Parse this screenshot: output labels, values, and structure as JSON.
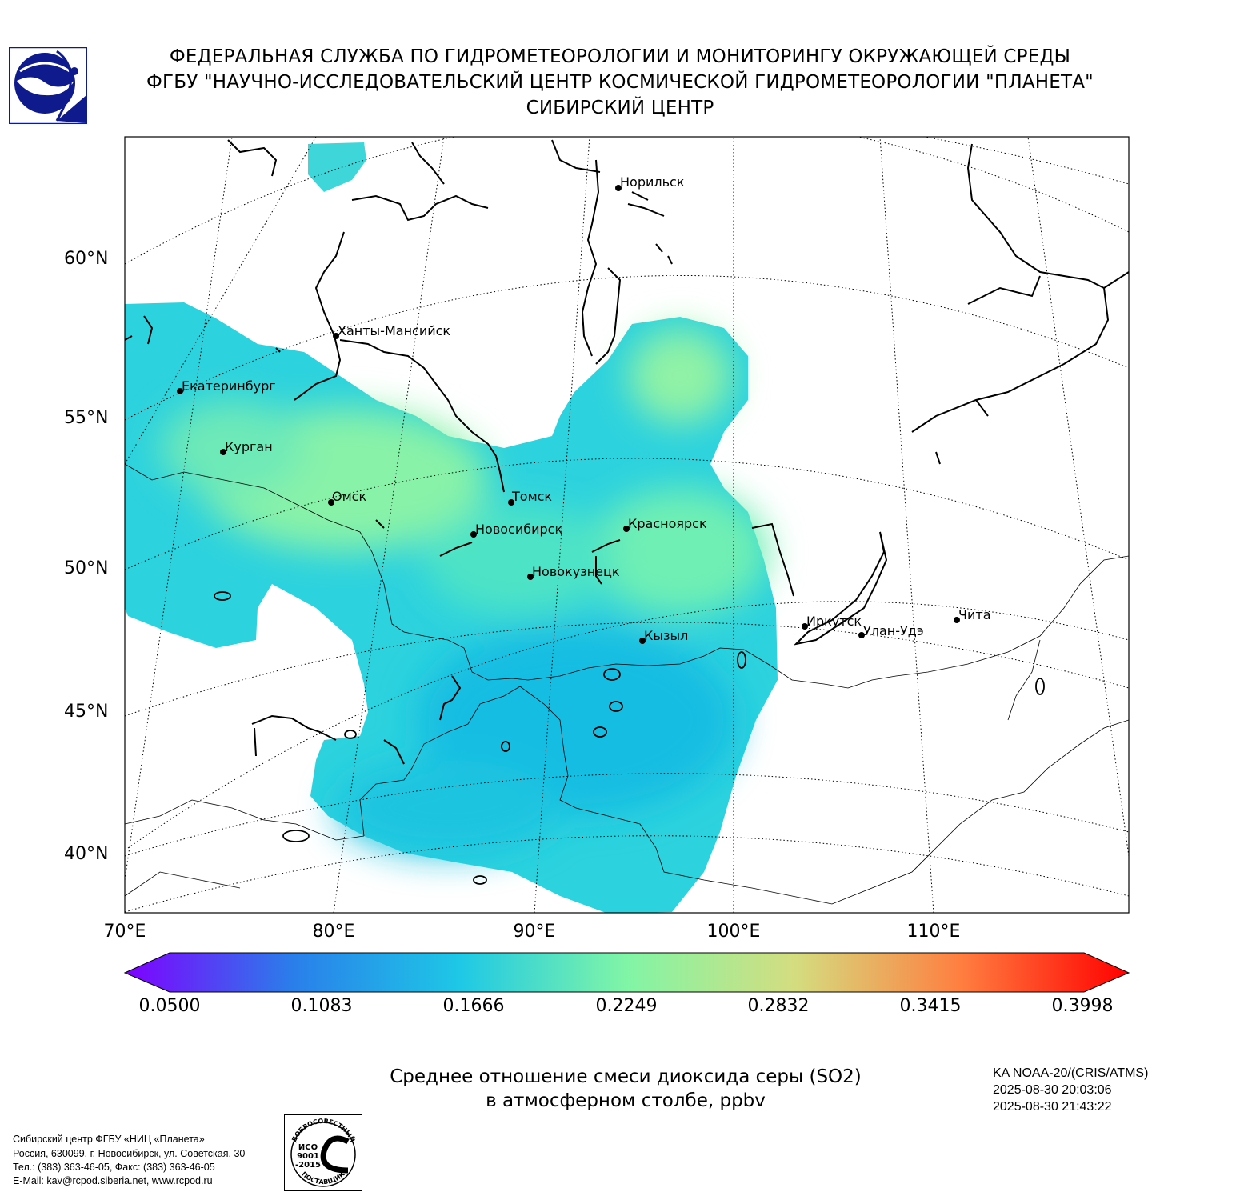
{
  "header": {
    "line1": "ФЕДЕРАЛЬНАЯ СЛУЖБА ПО ГИДРОМЕТЕОРОЛОГИИ И МОНИТОРИНГУ ОКРУЖАЮЩЕЙ СРЕДЫ",
    "line2": "ФГБУ \"НАУЧНО-ИССЛЕДОВАТЕЛЬСКИЙ ЦЕНТР КОСМИЧЕСКОЙ ГИДРОМЕТЕОРОЛОГИИ \"ПЛАНЕТА\"",
    "line3": "СИБИРСКИЙ ЦЕНТР"
  },
  "logo": {
    "icon": "planeta-logo-icon",
    "color": "#0f1a8c"
  },
  "map": {
    "lat_labels": [
      "60°N",
      "55°N",
      "50°N",
      "45°N",
      "40°N"
    ],
    "lon_labels": [
      "70°E",
      "80°E",
      "90°E",
      "100°E",
      "110°E"
    ],
    "cities": [
      "Норильск",
      "Ханты-Мансийск",
      "Екатеринбург",
      "Курган",
      "Омск",
      "Томск",
      "Новосибирск",
      "Красноярск",
      "Новокузнецк",
      "Иркутск",
      "Улан-Удэ",
      "Чита",
      "Кызыл"
    ]
  },
  "colorbar": {
    "ticks": [
      "0.0500",
      "0.1083",
      "0.1666",
      "0.2249",
      "0.2832",
      "0.3415",
      "0.3998"
    ],
    "colors": [
      "#7f00ff",
      "#2a7eea",
      "#1ec8e6",
      "#81f5a6",
      "#d4dd80",
      "#ff7e40",
      "#ff0000"
    ]
  },
  "caption": {
    "line1": "Среднее отношение смеси диоксида серы (SO2)",
    "line2": "в атмосферном столбе, ppbv"
  },
  "satellite": {
    "name": "KA NOAA-20/(CRIS/ATMS)",
    "time_start": "2025-08-30 20:03:06",
    "time_end": "2025-08-30 21:43:22"
  },
  "footer": {
    "line1": "Сибирский центр ФГБУ «НИЦ «Планета»",
    "line2": "Россия, 630099, г. Новосибирск, ул. Советская, 30",
    "line3": "Тел.: (383) 363-46-05, Факс: (383) 363-46-05",
    "line4": "E-Mail: kav@rcpod.siberia.net, www.rcpod.ru"
  },
  "iso_stamp": {
    "top_text": "ДОБРОСОВЕСТНЫЙ",
    "center_text": "ИСО 9001 -2015",
    "bottom_text": "ПОСТАВЩИК"
  }
}
